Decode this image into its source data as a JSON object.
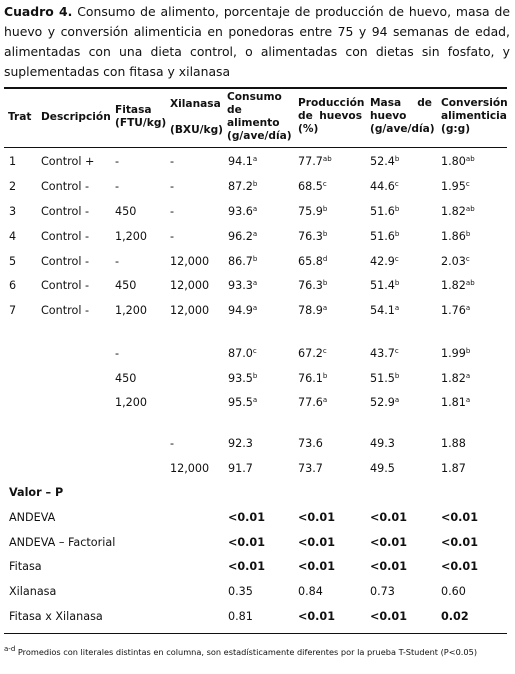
{
  "caption": {
    "label": "Cuadro 4.",
    "text": "Consumo de alimento, porcentaje de producción de huevo, masa de huevo y conversión alimenticia en ponedoras entre 75 y 94 semanas de edad, alimentadas con una dieta control, o alimentadas con dietas sin fosfato, y suplementadas con fitasa y xilanasa"
  },
  "header": {
    "trat": "Trat",
    "descripcion": "Descripción",
    "fitasa": "Fitasa (FTU/kg)",
    "xilanasa_name": "Xilanasa",
    "xilanasa_unit": "(BXU/kg)",
    "consumo": "Consumo de alimento (g/ave/día)",
    "produccion": "Producción de huevos (%)",
    "masa": "Masa de huevo (g/ave/día)",
    "conversion": "Conversión alimenticia (g:g)"
  },
  "rows": [
    {
      "trat": "1",
      "desc": "Control +",
      "fitasa": "-",
      "xil": "-",
      "consumo": "94.1",
      "consumo_s": "a",
      "prod": "77.7",
      "prod_s": "ab",
      "masa": "52.4",
      "masa_s": "b",
      "conv": "1.80",
      "conv_s": "ab"
    },
    {
      "trat": "2",
      "desc": "Control -",
      "fitasa": "-",
      "xil": "-",
      "consumo": "87.2",
      "consumo_s": "b",
      "prod": "68.5",
      "prod_s": "c",
      "masa": "44.6",
      "masa_s": "c",
      "conv": "1.95",
      "conv_s": "c"
    },
    {
      "trat": "3",
      "desc": "Control -",
      "fitasa": "450",
      "xil": "-",
      "consumo": "93.6",
      "consumo_s": "a",
      "prod": "75.9",
      "prod_s": "b",
      "masa": "51.6",
      "masa_s": "b",
      "conv": "1.82",
      "conv_s": "ab"
    },
    {
      "trat": "4",
      "desc": "Control -",
      "fitasa": "1,200",
      "xil": "-",
      "consumo": "96.2",
      "consumo_s": "a",
      "prod": "76.3",
      "prod_s": "b",
      "masa": "51.6",
      "masa_s": "b",
      "conv": "1.86",
      "conv_s": "b"
    },
    {
      "trat": "5",
      "desc": "Control -",
      "fitasa": "-",
      "xil": "12,000",
      "consumo": "86.7",
      "consumo_s": "b",
      "prod": "65.8",
      "prod_s": "d",
      "masa": "42.9",
      "masa_s": "c",
      "conv": "2.03",
      "conv_s": "c"
    },
    {
      "trat": "6",
      "desc": "Control -",
      "fitasa": "450",
      "xil": "12,000",
      "consumo": "93.3",
      "consumo_s": "a",
      "prod": "76.3",
      "prod_s": "b",
      "masa": "51.4",
      "masa_s": "b",
      "conv": "1.82",
      "conv_s": "ab"
    },
    {
      "trat": "7",
      "desc": "Control -",
      "fitasa": "1,200",
      "xil": "12,000",
      "consumo": "94.9",
      "consumo_s": "a",
      "prod": "78.9",
      "prod_s": "a",
      "masa": "54.1",
      "masa_s": "a",
      "conv": "1.76",
      "conv_s": "a"
    }
  ],
  "fitasa_means": [
    {
      "fitasa": "-",
      "consumo": "87.0",
      "consumo_s": "c",
      "prod": "67.2",
      "prod_s": "c",
      "masa": "43.7",
      "masa_s": "c",
      "conv": "1.99",
      "conv_s": "b"
    },
    {
      "fitasa": "450",
      "consumo": "93.5",
      "consumo_s": "b",
      "prod": "76.1",
      "prod_s": "b",
      "masa": "51.5",
      "masa_s": "b",
      "conv": "1.82",
      "conv_s": "a"
    },
    {
      "fitasa": "1,200",
      "consumo": "95.5",
      "consumo_s": "a",
      "prod": "77.6",
      "prod_s": "a",
      "masa": "52.9",
      "masa_s": "a",
      "conv": "1.81",
      "conv_s": "a"
    }
  ],
  "xilanasa_means": [
    {
      "xil": "-",
      "consumo": "92.3",
      "prod": "73.6",
      "masa": "49.3",
      "conv": "1.88"
    },
    {
      "xil": "12,000",
      "consumo": "91.7",
      "prod": "73.7",
      "masa": "49.5",
      "conv": "1.87"
    }
  ],
  "pvalues_title": "Valor – P",
  "pvalues": [
    {
      "label": "ANDEVA",
      "consumo": "<0.01",
      "prod": "<0.01",
      "masa": "<0.01",
      "conv": "<0.01",
      "bold": [
        true,
        true,
        true,
        true
      ]
    },
    {
      "label": "ANDEVA – Factorial",
      "consumo": "<0.01",
      "prod": "<0.01",
      "masa": "<0.01",
      "conv": "<0.01",
      "bold": [
        true,
        true,
        true,
        true
      ]
    },
    {
      "label": "Fitasa",
      "consumo": "<0.01",
      "prod": "<0.01",
      "masa": "<0.01",
      "conv": "<0.01",
      "bold": [
        true,
        true,
        true,
        true
      ]
    },
    {
      "label": "Xilanasa",
      "consumo": "0.35",
      "prod": "0.84",
      "masa": "0.73",
      "conv": "0.60",
      "bold": [
        false,
        false,
        false,
        false
      ]
    },
    {
      "label": "Fitasa x Xilanasa",
      "consumo": "0.81",
      "prod": "<0.01",
      "masa": "<0.01",
      "conv": "0.02",
      "bold": [
        false,
        true,
        true,
        true
      ]
    }
  ],
  "footnote": {
    "sup": "a-d",
    "text": "Promedios con literales distintas en columna, son estadísticamente diferentes por la prueba T-Student (P<0.05)"
  }
}
